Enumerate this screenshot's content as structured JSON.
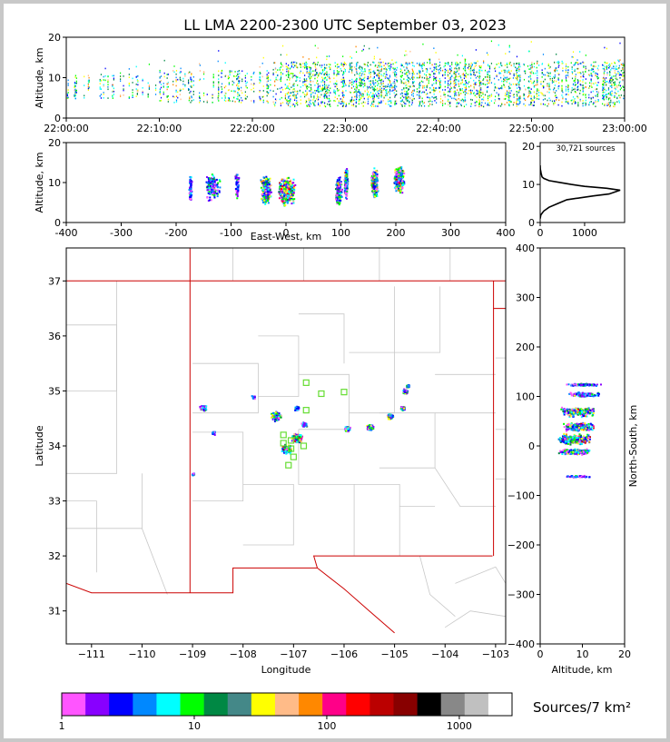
{
  "title": "LL LMA 2200-2300 UTC September 03, 2023",
  "colors": {
    "scale": [
      "#ff55ff",
      "#8800ff",
      "#0000ff",
      "#0088ff",
      "#00ffff",
      "#00ff00",
      "#008844",
      "#448888",
      "#ffff00",
      "#ffbb88",
      "#ff8800",
      "#ff0088",
      "#ff0000",
      "#bb0000",
      "#880000",
      "#000000",
      "#888888",
      "#c0c0c0",
      "#ffffff"
    ],
    "state_lines": "#cc0000",
    "county_lines": "#c8c8c8",
    "profile_line": "#000000"
  },
  "chart_data": [
    {
      "name_key": "time_height",
      "type": "scatter",
      "ylabel": "Altitude, km",
      "xticks": [
        "22:00:00",
        "22:10:00",
        "22:20:00",
        "22:30:00",
        "22:40:00",
        "22:50:00",
        "23:00:00"
      ],
      "yticks": [
        0,
        10,
        20
      ],
      "xlim_minutes": [
        0,
        60
      ],
      "ylim": [
        0,
        20
      ],
      "source_bands": [
        {
          "start_min": 0,
          "end_min": 10,
          "alt_range": [
            5,
            11
          ],
          "density": "sparse"
        },
        {
          "start_min": 10,
          "end_min": 22,
          "alt_range": [
            4,
            12
          ],
          "density": "moderate"
        },
        {
          "start_min": 22,
          "end_min": 60,
          "alt_range": [
            3,
            14
          ],
          "density": "dense"
        }
      ]
    },
    {
      "name_key": "east_west_altitude",
      "type": "scatter",
      "xlabel": "East-West, km",
      "ylabel": "Altitude, km",
      "xticks": [
        -400,
        -300,
        -200,
        -100,
        0,
        100,
        200,
        300,
        400
      ],
      "yticks": [
        0,
        10,
        20
      ],
      "xlim": [
        -400,
        400
      ],
      "ylim": [
        0,
        20
      ],
      "clusters": [
        {
          "x": -175,
          "alt": 9,
          "width": 5,
          "intensity": 0
        },
        {
          "x": -135,
          "alt": 9,
          "width": 25,
          "intensity": 1
        },
        {
          "x": -90,
          "alt": 10,
          "width": 8,
          "intensity": 0
        },
        {
          "x": -37,
          "alt": 8,
          "width": 18,
          "intensity": 3
        },
        {
          "x": 0,
          "alt": 8,
          "width": 30,
          "intensity": 4
        },
        {
          "x": 95,
          "alt": 8,
          "width": 12,
          "intensity": 2
        },
        {
          "x": 108,
          "alt": 10,
          "width": 6,
          "intensity": 2
        },
        {
          "x": 160,
          "alt": 10,
          "width": 12,
          "intensity": 3
        },
        {
          "x": 205,
          "alt": 11,
          "width": 18,
          "intensity": 3
        }
      ]
    },
    {
      "name_key": "altitude_histogram",
      "type": "line",
      "annotation": "30,721 sources",
      "xticks": [
        0,
        1000
      ],
      "yticks": [
        0,
        10,
        20
      ],
      "xlim": [
        0,
        1900
      ],
      "ylim": [
        0,
        21
      ],
      "profile": [
        [
          0,
          1
        ],
        [
          15,
          2
        ],
        [
          80,
          3
        ],
        [
          200,
          4
        ],
        [
          400,
          5
        ],
        [
          600,
          6
        ],
        [
          900,
          6.5
        ],
        [
          1200,
          7
        ],
        [
          1550,
          7.5
        ],
        [
          1800,
          8.5
        ],
        [
          1500,
          9
        ],
        [
          1000,
          9.5
        ],
        [
          700,
          10
        ],
        [
          400,
          10.6
        ],
        [
          200,
          11
        ],
        [
          80,
          11.6
        ],
        [
          40,
          12
        ],
        [
          20,
          13
        ],
        [
          5,
          14
        ],
        [
          0,
          15
        ]
      ]
    },
    {
      "name_key": "plan_view",
      "type": "scatter",
      "xlabel": "Longitude",
      "ylabel": "Latitude",
      "xticks": [
        -111,
        -110,
        -109,
        -108,
        -107,
        -106,
        -105,
        -104,
        -103
      ],
      "yticks": [
        31,
        32,
        33,
        34,
        35,
        36,
        37
      ],
      "xlim": [
        -111.5,
        -102.8
      ],
      "ylim": [
        30.4,
        37.6
      ],
      "stations": [
        [
          -106.75,
          35.15
        ],
        [
          -106.45,
          34.95
        ],
        [
          -106.0,
          34.98
        ],
        [
          -106.75,
          34.65
        ],
        [
          -107.2,
          34.05
        ],
        [
          -107.05,
          34.1
        ],
        [
          -106.8,
          34.0
        ],
        [
          -107.05,
          33.95
        ],
        [
          -107.0,
          33.8
        ],
        [
          -107.1,
          33.65
        ],
        [
          -107.2,
          34.2
        ]
      ],
      "clusters": [
        {
          "lon": -108.8,
          "lat": 34.7,
          "r": 0.08,
          "intensity": 1
        },
        {
          "lon": -108.6,
          "lat": 34.25,
          "r": 0.05,
          "intensity": 0
        },
        {
          "lon": -107.35,
          "lat": 34.55,
          "r": 0.12,
          "intensity": 3
        },
        {
          "lon": -106.95,
          "lat": 34.7,
          "r": 0.06,
          "intensity": 1
        },
        {
          "lon": -106.95,
          "lat": 34.15,
          "r": 0.12,
          "intensity": 4
        },
        {
          "lon": -107.15,
          "lat": 33.95,
          "r": 0.12,
          "intensity": 3
        },
        {
          "lon": -106.8,
          "lat": 34.4,
          "r": 0.06,
          "intensity": 1
        },
        {
          "lon": -105.95,
          "lat": 34.32,
          "r": 0.07,
          "intensity": 2
        },
        {
          "lon": -105.5,
          "lat": 34.35,
          "r": 0.08,
          "intensity": 2
        },
        {
          "lon": -105.1,
          "lat": 34.55,
          "r": 0.07,
          "intensity": 2
        },
        {
          "lon": -104.85,
          "lat": 34.7,
          "r": 0.05,
          "intensity": 2
        },
        {
          "lon": -104.8,
          "lat": 35.0,
          "r": 0.06,
          "intensity": 2
        },
        {
          "lon": -104.75,
          "lat": 35.1,
          "r": 0.04,
          "intensity": 1
        },
        {
          "lon": -109.0,
          "lat": 33.5,
          "r": 0.03,
          "intensity": 0
        },
        {
          "lon": -107.8,
          "lat": 34.9,
          "r": 0.05,
          "intensity": 0
        }
      ]
    },
    {
      "name_key": "altitude_north_south",
      "type": "scatter",
      "xlabel": "Altitude, km",
      "ylabel": "North-South, km",
      "xticks": [
        0,
        10,
        20
      ],
      "yticks": [
        -400,
        -300,
        -200,
        -100,
        0,
        100,
        200,
        300,
        400
      ],
      "xlim": [
        0,
        20
      ],
      "ylim": [
        -400,
        400
      ],
      "clusters": [
        {
          "y": 125,
          "alt": 10,
          "height": 5,
          "intensity": 1
        },
        {
          "y": 105,
          "alt": 10,
          "height": 10,
          "intensity": 1
        },
        {
          "y": 70,
          "alt": 9,
          "height": 18,
          "intensity": 3
        },
        {
          "y": 40,
          "alt": 9,
          "height": 15,
          "intensity": 3
        },
        {
          "y": 15,
          "alt": 8,
          "height": 20,
          "intensity": 4
        },
        {
          "y": -10,
          "alt": 8,
          "height": 12,
          "intensity": 2
        },
        {
          "y": -60,
          "alt": 9,
          "height": 4,
          "intensity": 0
        }
      ]
    }
  ],
  "colorbar": {
    "label": "Sources/7 km²",
    "ticks": [
      "1",
      "10",
      "100",
      "1000"
    ]
  }
}
